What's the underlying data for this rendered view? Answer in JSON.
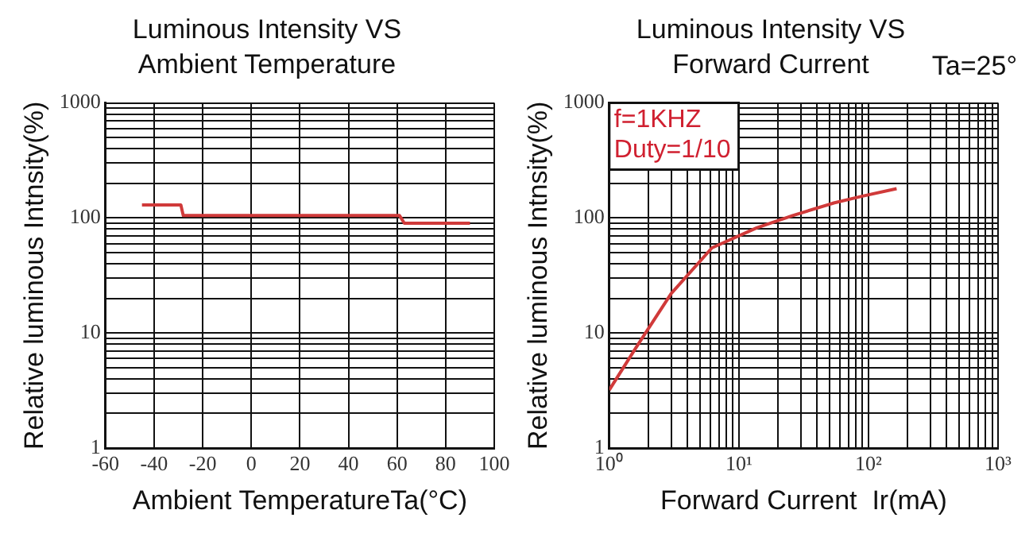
{
  "chart_data": [
    {
      "type": "line",
      "title": "Luminous Intensity VS Ambient Temperature",
      "xlabel": "Ambient TemperatureTa(°C)",
      "ylabel": "Relative luminous Intnsity(%)",
      "log": "y",
      "grid": true,
      "legend": false,
      "marker": "none",
      "line_style": "solid",
      "xlim": [
        -60,
        100
      ],
      "xticks": [
        -60,
        -40,
        -20,
        0,
        20,
        40,
        60,
        80,
        100
      ],
      "ylim": [
        1,
        1000
      ],
      "yticks": [
        1,
        {
          "value": 2,
          "label": null
        },
        {
          "value": 3,
          "label": null
        },
        {
          "value": 4,
          "label": null
        },
        {
          "value": 5,
          "label": null
        },
        {
          "value": 6,
          "label": null
        },
        {
          "value": 7,
          "label": null
        },
        {
          "value": 8,
          "label": null
        },
        {
          "value": 9,
          "label": null
        },
        10,
        {
          "value": 20,
          "label": null
        },
        {
          "value": 30,
          "label": null
        },
        {
          "value": 40,
          "label": null
        },
        {
          "value": 50,
          "label": null
        },
        {
          "value": 60,
          "label": null
        },
        {
          "value": 70,
          "label": null
        },
        {
          "value": 80,
          "label": null
        },
        {
          "value": 90,
          "label": null
        },
        100,
        {
          "value": 200,
          "label": null
        },
        {
          "value": 300,
          "label": null
        },
        {
          "value": 400,
          "label": null
        },
        {
          "value": 500,
          "label": null
        },
        {
          "value": 600,
          "label": null
        },
        {
          "value": 700,
          "label": null
        },
        {
          "value": 800,
          "label": null
        },
        {
          "value": 900,
          "label": null
        },
        1000
      ],
      "series": [
        {
          "color": "#d03a3a",
          "x": [
            -45,
            -29,
            -28,
            61,
            63,
            90
          ],
          "values": [
            130,
            130,
            105,
            105,
            90,
            90
          ]
        }
      ]
    },
    {
      "type": "line",
      "title": "Luminous Intensity VS Forward Current",
      "xlabel": "Forward Current  Ir(mA)",
      "ylabel": "Relative luminous Intnsity(%)",
      "log": "xy",
      "grid": true,
      "legend": false,
      "marker": "none",
      "line_style": "solid",
      "annotations": [
        "Ta=25°",
        "f=1KHZ",
        "Duty=1/10"
      ],
      "xlim": [
        1,
        1000
      ],
      "xticks": [
        {
          "value": 1,
          "label": "10⁰"
        },
        {
          "value": 2,
          "label": null
        },
        {
          "value": 3,
          "label": null
        },
        {
          "value": 4,
          "label": null
        },
        {
          "value": 5,
          "label": null
        },
        {
          "value": 6,
          "label": null
        },
        {
          "value": 7,
          "label": null
        },
        {
          "value": 8,
          "label": null
        },
        {
          "value": 9,
          "label": null
        },
        {
          "value": 10,
          "label": "10¹"
        },
        {
          "value": 20,
          "label": null
        },
        {
          "value": 30,
          "label": null
        },
        {
          "value": 40,
          "label": null
        },
        {
          "value": 50,
          "label": null
        },
        {
          "value": 60,
          "label": null
        },
        {
          "value": 70,
          "label": null
        },
        {
          "value": 80,
          "label": null
        },
        {
          "value": 90,
          "label": null
        },
        {
          "value": 100,
          "label": "10²"
        },
        {
          "value": 200,
          "label": null
        },
        {
          "value": 300,
          "label": null
        },
        {
          "value": 400,
          "label": null
        },
        {
          "value": 500,
          "label": null
        },
        {
          "value": 600,
          "label": null
        },
        {
          "value": 700,
          "label": null
        },
        {
          "value": 800,
          "label": null
        },
        {
          "value": 900,
          "label": null
        },
        {
          "value": 1000,
          "label": "10³"
        }
      ],
      "ylim": [
        1,
        1000
      ],
      "yticks": [
        1,
        {
          "value": 2,
          "label": null
        },
        {
          "value": 3,
          "label": null
        },
        {
          "value": 4,
          "label": null
        },
        {
          "value": 5,
          "label": null
        },
        {
          "value": 6,
          "label": null
        },
        {
          "value": 7,
          "label": null
        },
        {
          "value": 8,
          "label": null
        },
        {
          "value": 9,
          "label": null
        },
        10,
        {
          "value": 20,
          "label": null
        },
        {
          "value": 30,
          "label": null
        },
        {
          "value": 40,
          "label": null
        },
        {
          "value": 50,
          "label": null
        },
        {
          "value": 60,
          "label": null
        },
        {
          "value": 70,
          "label": null
        },
        {
          "value": 80,
          "label": null
        },
        {
          "value": 90,
          "label": null
        },
        100,
        {
          "value": 200,
          "label": null
        },
        {
          "value": 300,
          "label": null
        },
        {
          "value": 400,
          "label": null
        },
        {
          "value": 500,
          "label": null
        },
        {
          "value": 600,
          "label": null
        },
        {
          "value": 700,
          "label": null
        },
        {
          "value": 800,
          "label": null
        },
        {
          "value": 900,
          "label": null
        },
        1000
      ],
      "series": [
        {
          "color": "#d03a3a",
          "x": [
            1,
            1.6,
            3,
            6.2,
            13.7,
            26,
            54,
            90,
            165
          ],
          "values": [
            3.2,
            7.4,
            22,
            55,
            82,
            105,
            135,
            155,
            180
          ]
        }
      ]
    }
  ]
}
